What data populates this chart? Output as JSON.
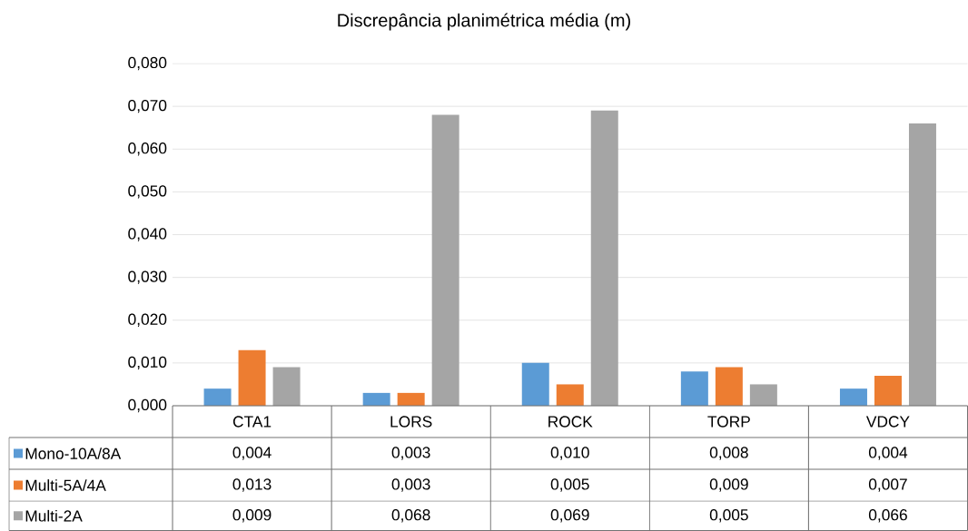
{
  "chart_data": {
    "type": "bar",
    "title": "Discrepância planimétrica média (m)",
    "categories": [
      "CTA1",
      "LORS",
      "ROCK",
      "TORP",
      "VDCY"
    ],
    "series": [
      {
        "name": "Mono-10A/8A",
        "color": "#5b9bd5",
        "values": [
          0.004,
          0.003,
          0.01,
          0.008,
          0.004
        ],
        "value_labels": [
          "0,004",
          "0,003",
          "0,010",
          "0,008",
          "0,004"
        ]
      },
      {
        "name": "Multi-5A/4A",
        "color": "#ed7d31",
        "values": [
          0.013,
          0.003,
          0.005,
          0.009,
          0.007
        ],
        "value_labels": [
          "0,013",
          "0,003",
          "0,005",
          "0,009",
          "0,007"
        ]
      },
      {
        "name": "Multi-2A",
        "color": "#a5a5a5",
        "values": [
          0.009,
          0.068,
          0.069,
          0.005,
          0.066
        ],
        "value_labels": [
          "0,009",
          "0,068",
          "0,069",
          "0,005",
          "0,066"
        ]
      }
    ],
    "ylim": [
      0,
      0.08
    ],
    "yticks": [
      {
        "value": 0,
        "label": "0,000"
      },
      {
        "value": 0.01,
        "label": "0,010"
      },
      {
        "value": 0.02,
        "label": "0,020"
      },
      {
        "value": 0.03,
        "label": "0,030"
      },
      {
        "value": 0.04,
        "label": "0,040"
      },
      {
        "value": 0.05,
        "label": "0,050"
      },
      {
        "value": 0.06,
        "label": "0,060"
      },
      {
        "value": 0.07,
        "label": "0,070"
      },
      {
        "value": 0.08,
        "label": "0,080"
      }
    ],
    "grid": "y",
    "legend": "bottom"
  }
}
